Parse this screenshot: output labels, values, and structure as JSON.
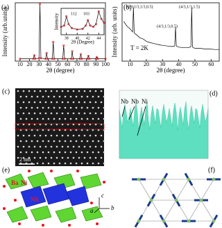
{
  "chart_data": [
    {
      "type": "line",
      "label": "(a)",
      "x_label": "2θ (degree)",
      "y_label": "Intensity (arb.units)",
      "xlim": [
        5,
        100
      ],
      "xticks": [
        10,
        20,
        30,
        40,
        50,
        60,
        70,
        80,
        90,
        100
      ],
      "ylim": [
        0,
        100
      ],
      "color": "#e8141c",
      "x": [
        10,
        24,
        25,
        26,
        30,
        31,
        32,
        37,
        38,
        39,
        44,
        45,
        46,
        55,
        56,
        57,
        64,
        65,
        66,
        73,
        74,
        75,
        81,
        82,
        83,
        90,
        91,
        92,
        100
      ],
      "values": [
        4,
        4,
        10,
        4,
        5,
        98,
        5,
        4,
        14,
        4,
        4,
        33,
        4,
        4,
        27,
        4,
        4,
        17,
        4,
        4,
        12,
        4,
        4,
        9,
        4,
        4,
        7,
        4,
        4
      ]
    },
    {
      "type": "line",
      "x_label": "2θ (Degree)",
      "y_label": "Intensity",
      "xlim": [
        37,
        45
      ],
      "xticks": [
        38,
        40,
        42,
        44
      ],
      "ylim": [
        0,
        100
      ],
      "color": "#e8141c",
      "annotations": [
        "112",
        "103"
      ],
      "x": [
        37,
        37.6,
        38,
        38.4,
        39,
        40,
        41,
        41.6,
        42,
        42.4,
        43,
        43.5,
        44,
        44.5,
        45
      ],
      "values": [
        30,
        35,
        70,
        40,
        25,
        20,
        22,
        35,
        55,
        35,
        30,
        40,
        88,
        60,
        45
      ]
    },
    {
      "type": "line",
      "label": "(b)",
      "x_label": "2θ (degree)",
      "y_label": "Intensity (arb. units)",
      "xlim": [
        5,
        65
      ],
      "xticks": [
        10,
        20,
        30,
        40,
        50,
        60
      ],
      "ylim": [
        0,
        100
      ],
      "color": "#000000",
      "annotations": [
        "Q=(1/3,1/3,0.5)",
        "(4/3,1/3,0.5)",
        "(4/3,1/3,1.5)",
        "T = 2K"
      ],
      "x": [
        6,
        8,
        10,
        11.5,
        12,
        12.5,
        14,
        16,
        18,
        20,
        22,
        25,
        28,
        30,
        33,
        36,
        37.5,
        38,
        38.5,
        40,
        43,
        46,
        47.5,
        48,
        48.5,
        50,
        53,
        56,
        59,
        62,
        65
      ],
      "values": [
        68,
        60,
        55,
        50,
        92,
        48,
        45,
        40,
        38,
        34,
        32,
        30,
        28,
        27,
        26,
        25,
        26,
        58,
        26,
        24,
        23,
        23,
        25,
        92,
        24,
        22,
        22,
        21,
        21,
        20,
        20
      ]
    }
  ],
  "panel_c": {
    "label": "(c)",
    "scale": "2 nm"
  },
  "panel_d": {
    "label": "(d)",
    "atoms": [
      "Nb",
      "Nb",
      "Ni"
    ]
  },
  "panel_e": {
    "label": "(e)",
    "atoms": [
      "Ba",
      "Ni",
      "Nb"
    ],
    "axes": [
      "c",
      "b",
      "a"
    ]
  },
  "panel_f": {
    "label": "(f)"
  }
}
